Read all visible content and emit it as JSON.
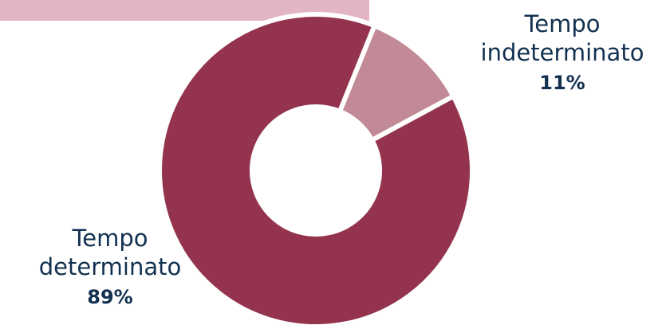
{
  "chart_data": {
    "type": "pie",
    "variant": "donut",
    "categories": [
      "Tempo indeterminato",
      "Tempo determinato"
    ],
    "values": [
      11,
      89
    ],
    "value_labels": [
      "11%",
      "89%"
    ],
    "colors": [
      "#c28a96",
      "#93334d"
    ],
    "name_lines": [
      [
        "Tempo",
        "indeterminato"
      ],
      [
        "Tempo",
        "determinato"
      ]
    ],
    "highlight_band_color": "#e3b4c2",
    "label_color": "#12304f",
    "title": ""
  }
}
